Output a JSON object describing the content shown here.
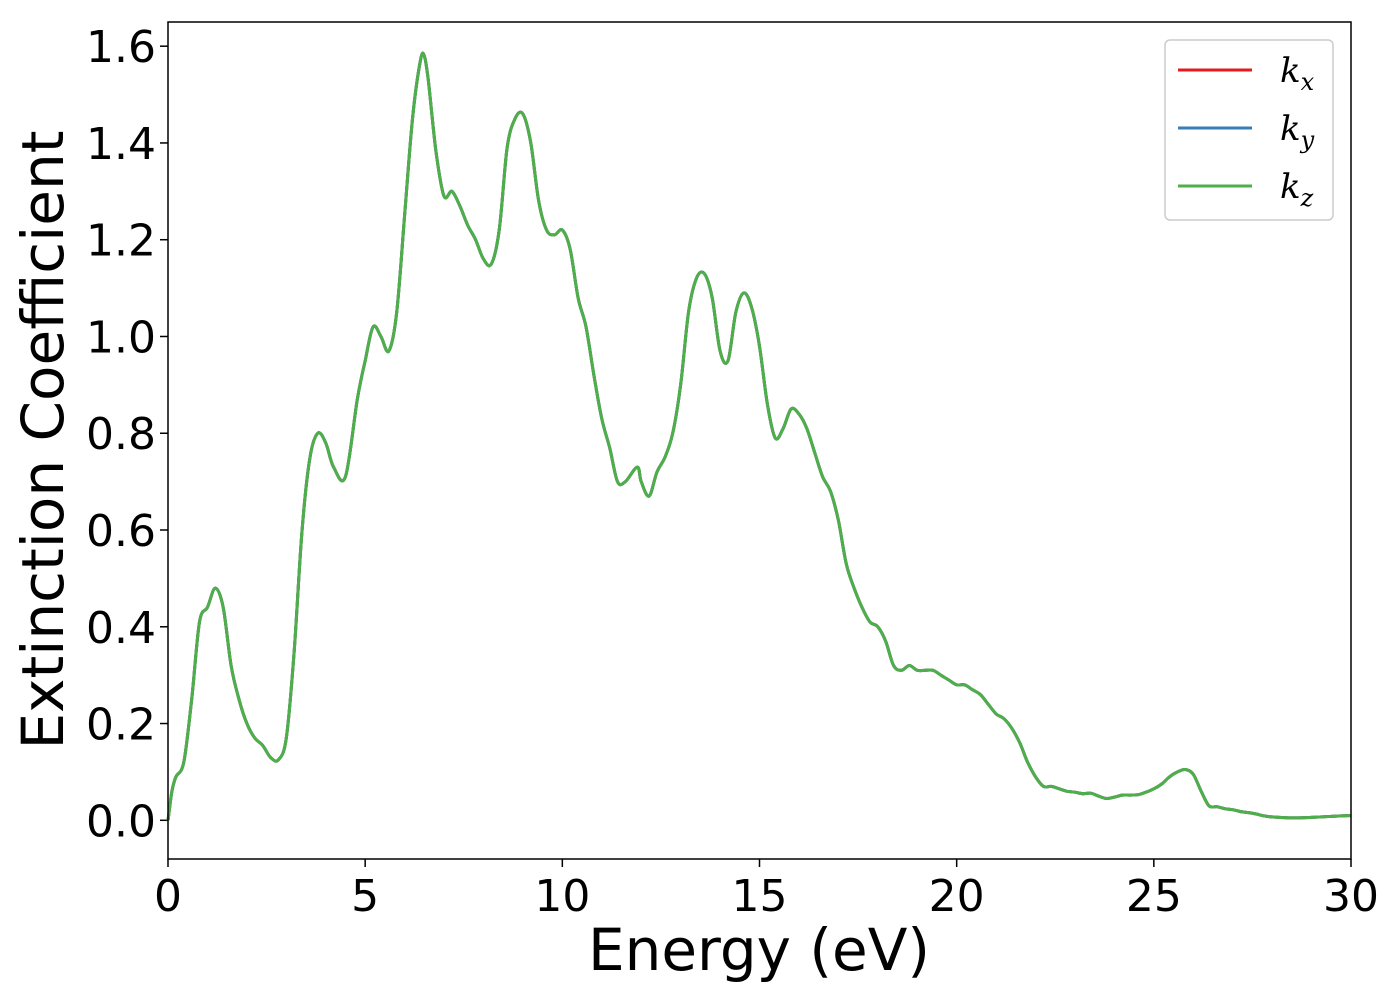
{
  "chart_data": {
    "type": "line",
    "xlabel": "Energy (eV)",
    "ylabel": "Extinction Coefficient",
    "xlim": [
      0,
      30
    ],
    "ylim": [
      -0.08,
      1.65
    ],
    "xticks": [
      "0",
      "5",
      "10",
      "15",
      "20",
      "25",
      "30"
    ],
    "yticks": [
      "0.0",
      "0.2",
      "0.4",
      "0.6",
      "0.8",
      "1.0",
      "1.2",
      "1.4",
      "1.6"
    ],
    "grid": false,
    "legend_position": "top-right",
    "series": [
      {
        "name": "k",
        "subscript": "x",
        "color": "#e41a1c"
      },
      {
        "name": "k",
        "subscript": "y",
        "color": "#377eb8"
      },
      {
        "name": "k",
        "subscript": "z",
        "color": "#4daf4a"
      }
    ],
    "x": [
      0,
      0.1,
      0.2,
      0.4,
      0.6,
      0.8,
      1.0,
      1.2,
      1.4,
      1.6,
      1.8,
      2.0,
      2.2,
      2.4,
      2.6,
      2.8,
      3.0,
      3.2,
      3.4,
      3.6,
      3.8,
      4.0,
      4.2,
      4.5,
      4.8,
      5.0,
      5.2,
      5.4,
      5.6,
      5.8,
      6.0,
      6.2,
      6.4,
      6.5,
      6.6,
      6.8,
      7.0,
      7.2,
      7.4,
      7.6,
      7.8,
      8.0,
      8.2,
      8.4,
      8.6,
      8.8,
      9.0,
      9.2,
      9.4,
      9.6,
      9.8,
      10.0,
      10.2,
      10.4,
      10.6,
      10.8,
      11.0,
      11.2,
      11.4,
      11.6,
      11.9,
      12.0,
      12.2,
      12.4,
      12.6,
      12.8,
      13.0,
      13.2,
      13.4,
      13.6,
      13.8,
      14.0,
      14.2,
      14.4,
      14.6,
      14.8,
      15.0,
      15.2,
      15.4,
      15.6,
      15.8,
      16.0,
      16.2,
      16.4,
      16.6,
      16.8,
      17.0,
      17.2,
      17.4,
      17.6,
      17.8,
      18.0,
      18.2,
      18.4,
      18.6,
      18.8,
      19.0,
      19.2,
      19.4,
      19.6,
      19.8,
      20.0,
      20.2,
      20.4,
      20.6,
      20.8,
      21.0,
      21.2,
      21.4,
      21.6,
      21.8,
      22.0,
      22.2,
      22.4,
      22.6,
      22.8,
      23.0,
      23.2,
      23.4,
      23.6,
      23.8,
      24.0,
      24.2,
      24.4,
      24.6,
      24.8,
      25.0,
      25.2,
      25.4,
      25.6,
      25.8,
      26.0,
      26.2,
      26.4,
      26.6,
      26.8,
      27.0,
      27.2,
      27.4,
      27.6,
      27.8,
      28.0,
      28.5,
      29.0,
      29.5,
      30.0
    ],
    "values": [
      0.0,
      0.06,
      0.09,
      0.12,
      0.25,
      0.41,
      0.44,
      0.48,
      0.44,
      0.32,
      0.25,
      0.2,
      0.17,
      0.155,
      0.13,
      0.125,
      0.17,
      0.35,
      0.6,
      0.75,
      0.8,
      0.78,
      0.73,
      0.71,
      0.87,
      0.95,
      1.02,
      1.0,
      0.97,
      1.05,
      1.25,
      1.45,
      1.57,
      1.58,
      1.53,
      1.38,
      1.29,
      1.3,
      1.27,
      1.23,
      1.2,
      1.16,
      1.15,
      1.22,
      1.39,
      1.45,
      1.46,
      1.4,
      1.28,
      1.22,
      1.21,
      1.22,
      1.18,
      1.08,
      1.02,
      0.92,
      0.83,
      0.77,
      0.7,
      0.7,
      0.73,
      0.7,
      0.67,
      0.72,
      0.75,
      0.8,
      0.9,
      1.05,
      1.12,
      1.13,
      1.08,
      0.97,
      0.95,
      1.05,
      1.09,
      1.06,
      0.98,
      0.86,
      0.79,
      0.81,
      0.85,
      0.84,
      0.81,
      0.76,
      0.71,
      0.68,
      0.62,
      0.53,
      0.48,
      0.44,
      0.41,
      0.4,
      0.37,
      0.32,
      0.31,
      0.32,
      0.31,
      0.31,
      0.31,
      0.3,
      0.29,
      0.28,
      0.28,
      0.27,
      0.26,
      0.24,
      0.22,
      0.21,
      0.19,
      0.16,
      0.12,
      0.09,
      0.07,
      0.07,
      0.065,
      0.06,
      0.058,
      0.055,
      0.056,
      0.05,
      0.045,
      0.048,
      0.052,
      0.052,
      0.053,
      0.058,
      0.065,
      0.075,
      0.09,
      0.1,
      0.105,
      0.095,
      0.06,
      0.03,
      0.028,
      0.024,
      0.022,
      0.018,
      0.016,
      0.013,
      0.009,
      0.007,
      0.005,
      0.006,
      0.008,
      0.01
    ]
  }
}
